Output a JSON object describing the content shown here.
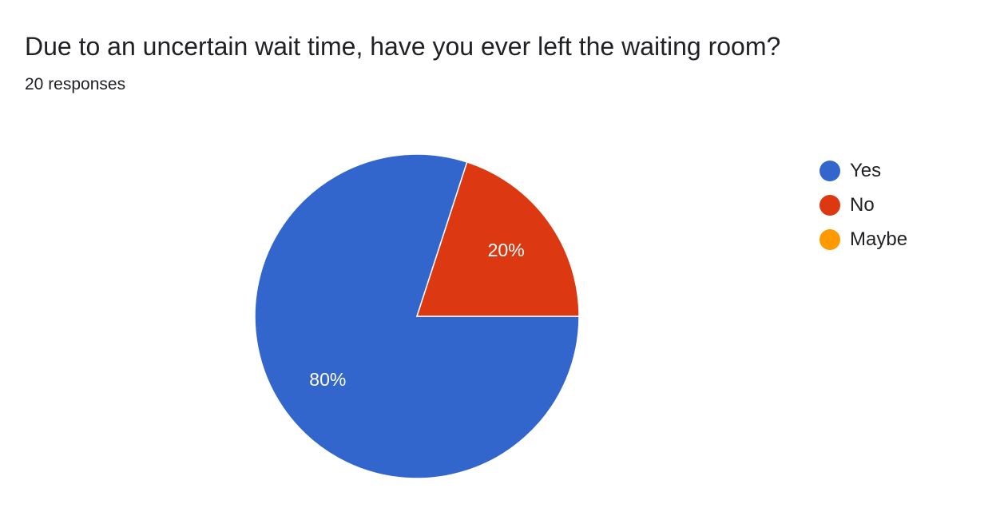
{
  "header": {
    "title": "Due to an uncertain wait time, have you ever left the waiting room?",
    "subtitle": "20 responses"
  },
  "chart_data": {
    "type": "pie",
    "categories": [
      "Yes",
      "No",
      "Maybe"
    ],
    "values": [
      80,
      20,
      0
    ],
    "labels": [
      "80%",
      "20%",
      ""
    ],
    "colors": [
      "#3366cc",
      "#dc3912",
      "#ff9900"
    ],
    "legend_position": "right"
  }
}
